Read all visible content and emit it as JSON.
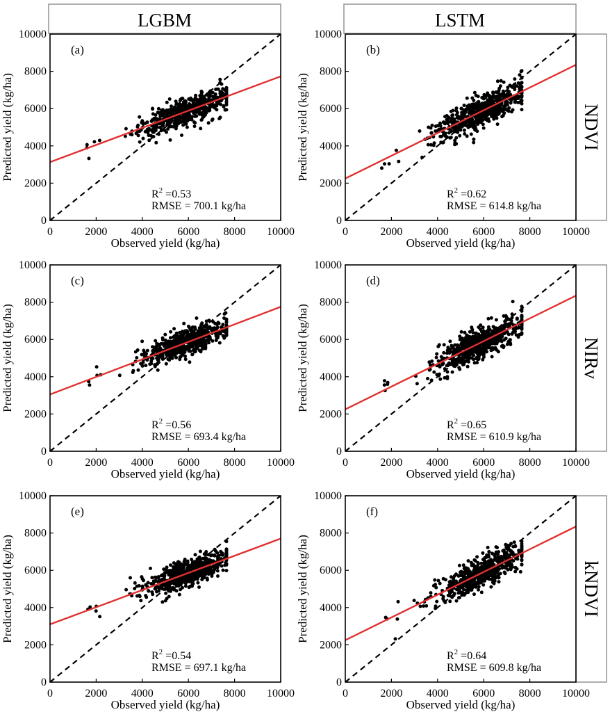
{
  "columns": [
    "LGBM",
    "LSTM"
  ],
  "rows": [
    "NDVI",
    "NIRv",
    "kNDVI"
  ],
  "chart_data": [
    {
      "type": "scatter",
      "panel": "(a)",
      "model": "LGBM",
      "index": "NDVI",
      "xlabel": "Observed yield (kg/ha)",
      "ylabel": "Predicted yield (kg/ha)",
      "xlim": [
        0,
        10000
      ],
      "ylim": [
        0,
        10000
      ],
      "xticks": [
        "0",
        "2000",
        "4000",
        "6000",
        "8000",
        "10000"
      ],
      "yticks": [
        "0",
        "2000",
        "4000",
        "6000",
        "8000",
        "10000"
      ],
      "r2_label": "R",
      "r2_sup": "2",
      "r2_value": " =0.53",
      "rmse_text": "RMSE = 700.1 kg/ha",
      "fit_line": {
        "slope": 0.46,
        "intercept": 3130,
        "color": "#e03030"
      },
      "one_to_one": true,
      "n_points": 600,
      "x_center": 5900,
      "x_sd": 950,
      "resid_sd": 360
    },
    {
      "type": "scatter",
      "panel": "(b)",
      "model": "LSTM",
      "index": "NDVI",
      "xlabel": "Observed yield (kg/ha)",
      "ylabel": "Predicted yield (kg/ha)",
      "xlim": [
        0,
        10000
      ],
      "ylim": [
        0,
        10000
      ],
      "xticks": [
        "0",
        "2000",
        "4000",
        "6000",
        "8000",
        "10000"
      ],
      "yticks": [
        "0",
        "2000",
        "4000",
        "6000",
        "8000",
        "10000"
      ],
      "r2_label": "R",
      "r2_sup": "2",
      "r2_value": " =0.62",
      "rmse_text": "RMSE = 614.8 kg/ha",
      "fit_line": {
        "slope": 0.61,
        "intercept": 2250,
        "color": "#e03030"
      },
      "one_to_one": true,
      "n_points": 600,
      "x_center": 5900,
      "x_sd": 950,
      "resid_sd": 430
    },
    {
      "type": "scatter",
      "panel": "(c)",
      "model": "LGBM",
      "index": "NIRv",
      "xlabel": "Observed yield (kg/ha)",
      "ylabel": "Predicted yield (kg/ha)",
      "xlim": [
        0,
        10000
      ],
      "ylim": [
        0,
        10000
      ],
      "xticks": [
        "0",
        "2000",
        "4000",
        "6000",
        "8000",
        "10000"
      ],
      "yticks": [
        "0",
        "2000",
        "4000",
        "6000",
        "8000",
        "10000"
      ],
      "r2_label": "R",
      "r2_sup": "2",
      "r2_value": " =0.56",
      "rmse_text": "RMSE = 693.4 kg/ha",
      "fit_line": {
        "slope": 0.47,
        "intercept": 3050,
        "color": "#e03030"
      },
      "one_to_one": true,
      "n_points": 600,
      "x_center": 5900,
      "x_sd": 950,
      "resid_sd": 350
    },
    {
      "type": "scatter",
      "panel": "(d)",
      "model": "LSTM",
      "index": "NIRv",
      "xlabel": "Observed yield (kg/ha)",
      "ylabel": "Predicted yield (kg/ha)",
      "xlim": [
        0,
        10000
      ],
      "ylim": [
        0,
        10000
      ],
      "xticks": [
        "0",
        "2000",
        "4000",
        "6000",
        "8000",
        "10000"
      ],
      "yticks": [
        "0",
        "2000",
        "4000",
        "6000",
        "8000",
        "10000"
      ],
      "r2_label": "R",
      "r2_sup": "2",
      "r2_value": " =0.65",
      "rmse_text": "RMSE = 610.9 kg/ha",
      "fit_line": {
        "slope": 0.61,
        "intercept": 2250,
        "color": "#e03030"
      },
      "one_to_one": true,
      "n_points": 600,
      "x_center": 5900,
      "x_sd": 950,
      "resid_sd": 420
    },
    {
      "type": "scatter",
      "panel": "(e)",
      "model": "LGBM",
      "index": "kNDVI",
      "xlabel": "Observed yield (kg/ha)",
      "ylabel": "Predicted yield (kg/ha)",
      "xlim": [
        0,
        10000
      ],
      "ylim": [
        0,
        10000
      ],
      "xticks": [
        "0",
        "2000",
        "4000",
        "6000",
        "8000",
        "10000"
      ],
      "yticks": [
        "0",
        "2000",
        "4000",
        "6000",
        "8000",
        "10000"
      ],
      "r2_label": "R",
      "r2_sup": "2",
      "r2_value": " =0.54",
      "rmse_text": "RMSE = 697.1 kg/ha",
      "fit_line": {
        "slope": 0.46,
        "intercept": 3100,
        "color": "#e03030"
      },
      "one_to_one": true,
      "n_points": 600,
      "x_center": 5900,
      "x_sd": 950,
      "resid_sd": 360
    },
    {
      "type": "scatter",
      "panel": "(f)",
      "model": "LSTM",
      "index": "kNDVI",
      "xlabel": "Observed yield (kg/ha)",
      "ylabel": "Predicted yield (kg/ha)",
      "xlim": [
        0,
        10000
      ],
      "ylim": [
        0,
        10000
      ],
      "xticks": [
        "0",
        "2000",
        "4000",
        "6000",
        "8000",
        "10000"
      ],
      "yticks": [
        "0",
        "2000",
        "4000",
        "6000",
        "8000",
        "10000"
      ],
      "r2_label": "R",
      "r2_sup": "2",
      "r2_value": " =0.64",
      "rmse_text": "RMSE = 609.8 kg/ha",
      "fit_line": {
        "slope": 0.61,
        "intercept": 2250,
        "color": "#e03030"
      },
      "one_to_one": true,
      "n_points": 600,
      "x_center": 5900,
      "x_sd": 950,
      "resid_sd": 420
    }
  ]
}
